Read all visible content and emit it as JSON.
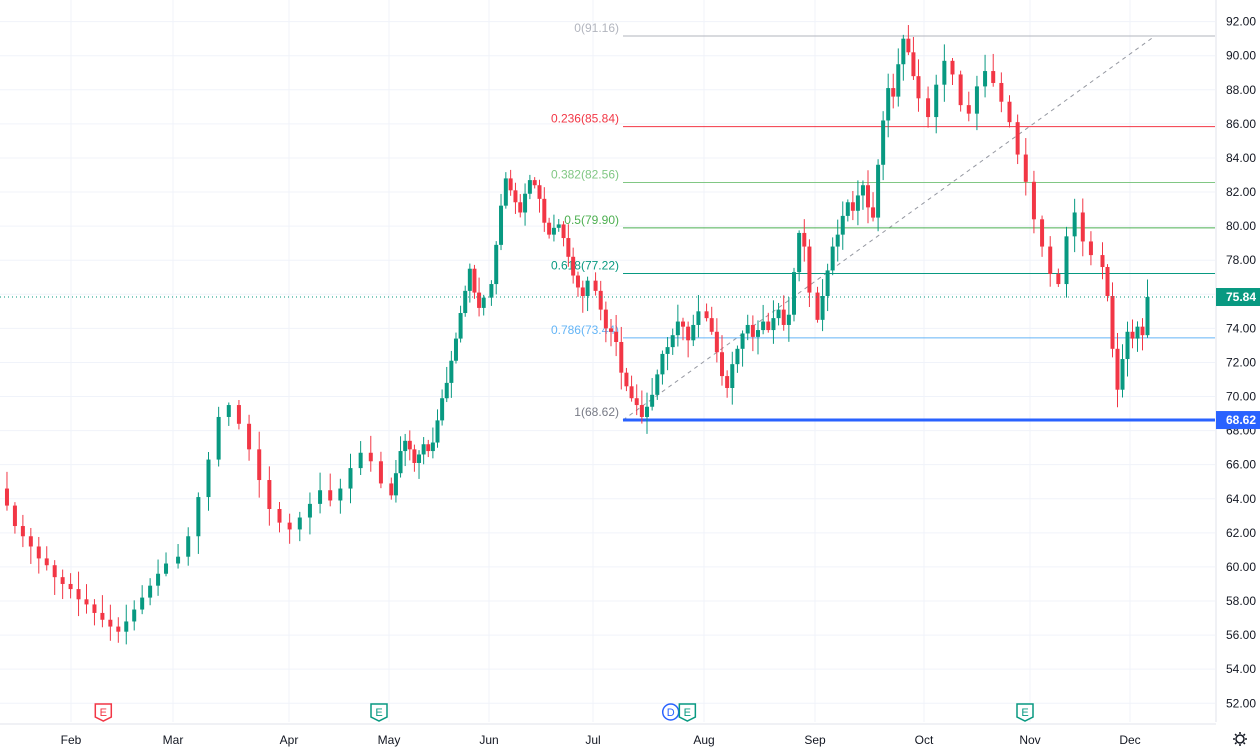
{
  "chart_data": {
    "type": "candlestick",
    "x_labels": [
      "Feb",
      "Mar",
      "Apr",
      "May",
      "Jun",
      "Jul",
      "Aug",
      "Sep",
      "Oct",
      "Nov",
      "Dec"
    ],
    "y_ticks": [
      "52.00",
      "54.00",
      "56.00",
      "58.00",
      "60.00",
      "62.00",
      "64.00",
      "66.00",
      "68.00",
      "70.00",
      "72.00",
      "74.00",
      "76.00",
      "78.00",
      "80.00",
      "82.00",
      "84.00",
      "86.00",
      "88.00",
      "90.00",
      "92.00"
    ],
    "ylim": [
      50.9,
      92.8
    ],
    "grid": true,
    "last_price": {
      "value": 75.84,
      "label": "75.84"
    },
    "fibonacci": {
      "from": 68.62,
      "to": 91.16,
      "levels": [
        {
          "ratio_label": "0(91.16)",
          "value": 91.16,
          "color": "#b2b5be"
        },
        {
          "ratio_label": "0.236(85.84)",
          "value": 85.84,
          "color": "#f23645"
        },
        {
          "ratio_label": "0.382(82.56)",
          "value": 82.56,
          "color": "#81c784"
        },
        {
          "ratio_label": "0.5(79.90)",
          "value": 79.9,
          "color": "#4caf50"
        },
        {
          "ratio_label": "0.618(77.22)",
          "value": 77.22,
          "color": "#089981"
        },
        {
          "ratio_label": "0.786(73.44)",
          "value": 73.44,
          "color": "#64b5f6"
        },
        {
          "ratio_label": "1(68.62)",
          "value": 68.62,
          "color": "#787b86"
        }
      ],
      "base_label": "68.62"
    },
    "event_markers": [
      {
        "month": "Feb",
        "offset": 0.15,
        "label": "E",
        "color": "#f23645"
      },
      {
        "month": "May",
        "offset": -0.1,
        "label": "E",
        "color": "#089981"
      },
      {
        "month": "Aug",
        "offset": -0.3,
        "label": "D",
        "color": "#2962ff"
      },
      {
        "month": "Aug",
        "offset": -0.15,
        "label": "E",
        "color": "#089981"
      },
      {
        "month": "Nov",
        "offset": -0.05,
        "label": "E",
        "color": "#089981"
      }
    ],
    "series": [
      {
        "month_index": 0,
        "closes": [
          63.6,
          62.4,
          61.8,
          61.2,
          60.5,
          60.1,
          59.4,
          59.0,
          58.7,
          58.1,
          57.8,
          57.3,
          56.9,
          56.5,
          56.2,
          56.8,
          57.5,
          58.2,
          58.9,
          59.6,
          60.2
        ]
      },
      {
        "month_index": 1,
        "closes": [
          60.6,
          61.8,
          64.1,
          66.3,
          68.8,
          69.5,
          68.4,
          66.9,
          65.1,
          63.4,
          62.6,
          62.2,
          62.9,
          63.7,
          64.5,
          63.9,
          64.6,
          65.8,
          66.7,
          66.2,
          64.9
        ]
      },
      {
        "month_index": 2,
        "closes": [
          64.2,
          65.5,
          66.8,
          67.4,
          66.9,
          66.1,
          66.6,
          67.2,
          66.8,
          67.3,
          68.6,
          69.9,
          70.8,
          72.1,
          73.4,
          74.9,
          76.2,
          77.5,
          76.1,
          75.2,
          75.8
        ]
      },
      {
        "month_index": 3,
        "closes": [
          76.6,
          78.9,
          81.2,
          82.8,
          82.1,
          81.4,
          80.8,
          81.9,
          82.7,
          82.4,
          81.6,
          80.2,
          79.5,
          79.9,
          80.1,
          79.3,
          78.2,
          77.1,
          76.4,
          75.9,
          76.8
        ]
      },
      {
        "month_index": 4,
        "closes": [
          76.2,
          75.1,
          74.0,
          73.8,
          73.2,
          71.4,
          70.6,
          69.9,
          69.5,
          68.8,
          69.4,
          70.1,
          71.3,
          72.5,
          72.9,
          73.6,
          74.4,
          74.1,
          73.3,
          74.2,
          75.0
        ]
      },
      {
        "month_index": 5,
        "closes": [
          74.6,
          73.8,
          72.6,
          71.2,
          70.5,
          71.9,
          72.8,
          73.7,
          74.2,
          73.5,
          73.9,
          74.4,
          73.9,
          74.6,
          75.1,
          74.2,
          74.8,
          77.3,
          79.6,
          78.8,
          76.1
        ]
      },
      {
        "month_index": 6,
        "closes": [
          74.5,
          75.9,
          77.4,
          78.8,
          79.5,
          80.6,
          81.4,
          80.9,
          81.8,
          82.4,
          81.1,
          80.5,
          83.6,
          86.2,
          88.1,
          87.6,
          89.5,
          91.0,
          90.2,
          88.8,
          87.5
        ]
      },
      {
        "month_index": 7,
        "closes": [
          86.4,
          88.3,
          89.7,
          88.9,
          87.1,
          86.6,
          88.2,
          89.1,
          88.4,
          87.3,
          86.1,
          84.2,
          82.6,
          80.4,
          78.8,
          77.2,
          76.6,
          79.4,
          80.8,
          79.1,
          78.3
        ]
      },
      {
        "month_index": 8,
        "closes": [
          77.6,
          75.9,
          72.8,
          70.4,
          72.2,
          73.8,
          73.4,
          74.1,
          73.6,
          75.84
        ]
      }
    ]
  }
}
